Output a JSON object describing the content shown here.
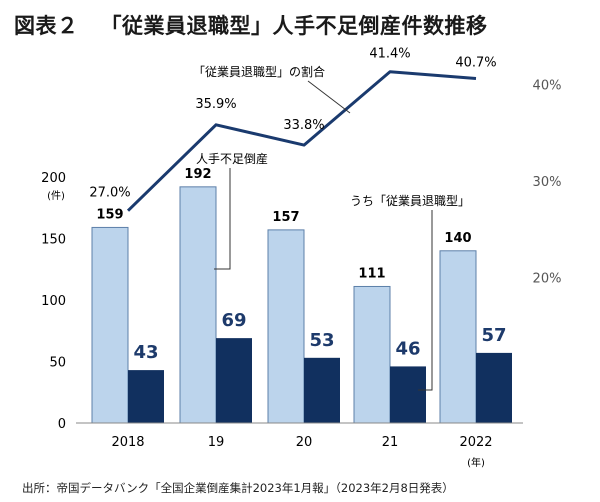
{
  "title": {
    "label": "図表２",
    "text": "「従業員退職型」人手不足倒産件数推移"
  },
  "source": "出所：帝国データバンク「全国企業倒産集計2023年1月報」（2023年2月8日発表）",
  "colors": {
    "total_bar": "#bcd4ec",
    "total_bar_border": "#5c7fa8",
    "sub_bar": "#11305f",
    "line": "#1a3a6e",
    "sub_label": "#1d3a6b"
  },
  "chart_data": {
    "type": "bar",
    "categories": [
      "2018",
      "19",
      "20",
      "21",
      "2022"
    ],
    "x_unit": "(年)",
    "y_left": {
      "ticks": [
        "0",
        "50",
        "100",
        "150",
        "200"
      ],
      "unit": "(件)",
      "ylim": [
        0,
        200
      ]
    },
    "y_right": {
      "ticks": [
        "20%",
        "30%",
        "40%"
      ],
      "ylim": [
        0.05,
        0.45
      ]
    },
    "series": [
      {
        "name": "人手不足倒産",
        "kind": "bar",
        "values": [
          159,
          192,
          157,
          111,
          140
        ],
        "labels": [
          "159",
          "192",
          "157",
          "111",
          "140"
        ]
      },
      {
        "name": "うち「従業員退職型」",
        "kind": "bar",
        "values": [
          43,
          69,
          53,
          46,
          57
        ],
        "labels": [
          "43",
          "69",
          "53",
          "46",
          "57"
        ]
      },
      {
        "name": "「従業員退職型」の割合",
        "kind": "line",
        "axis": "right",
        "values": [
          0.27,
          0.359,
          0.338,
          0.414,
          0.407
        ],
        "labels": [
          "27.0%",
          "35.9%",
          "33.8%",
          "41.4%",
          "40.7%"
        ]
      }
    ],
    "grid": false
  }
}
